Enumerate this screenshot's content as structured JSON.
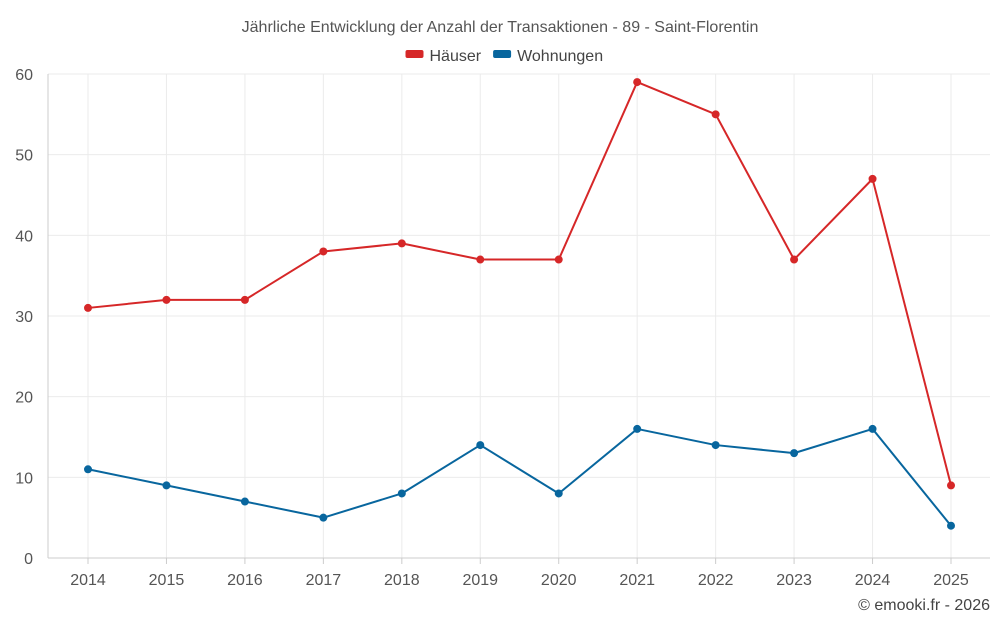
{
  "chart_data": {
    "type": "line",
    "title": "Jährliche Entwicklung der Anzahl der Transaktionen - 89 - Saint-Florentin",
    "categories": [
      "2014",
      "2015",
      "2016",
      "2017",
      "2018",
      "2019",
      "2020",
      "2021",
      "2022",
      "2023",
      "2024",
      "2025"
    ],
    "series": [
      {
        "name": "Häuser",
        "color": "#d62728",
        "values": [
          31,
          32,
          32,
          38,
          39,
          37,
          37,
          59,
          55,
          37,
          47,
          9
        ]
      },
      {
        "name": "Wohnungen",
        "color": "#08669e",
        "values": [
          11,
          9,
          7,
          5,
          8,
          14,
          8,
          16,
          14,
          13,
          16,
          4
        ]
      }
    ],
    "ylim": [
      0,
      60
    ],
    "yticks": [
      0,
      10,
      20,
      30,
      40,
      50,
      60
    ],
    "xlabel": "",
    "ylabel": "",
    "legend": "top-center",
    "grid": true
  },
  "credit": "© emooki.fr - 2026"
}
